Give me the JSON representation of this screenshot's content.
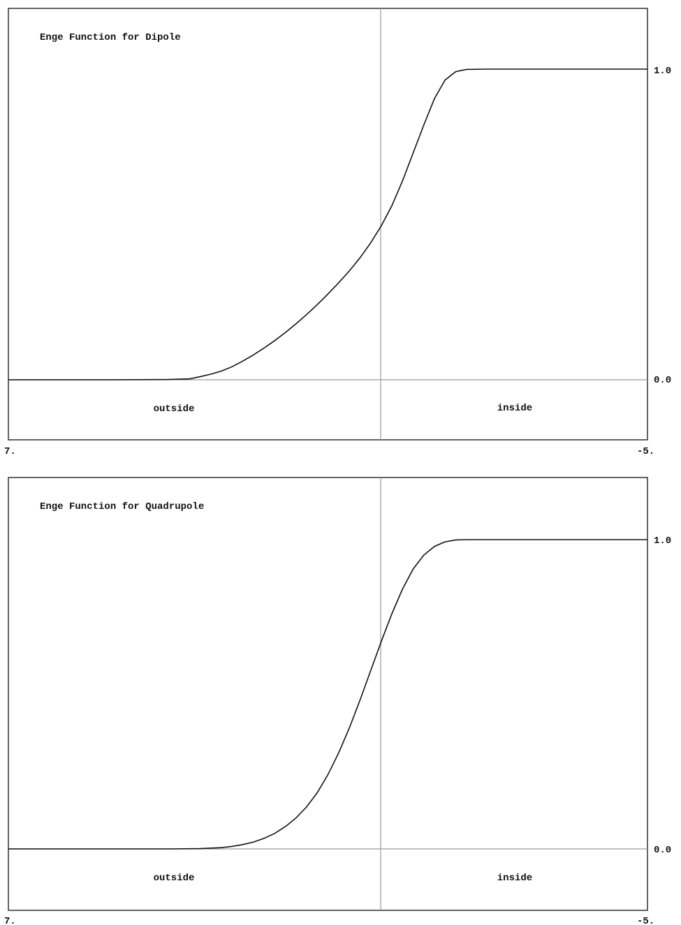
{
  "chart_data": [
    {
      "type": "line",
      "title": "Enge Function for Dipole",
      "xlim": [
        7,
        -5
      ],
      "ylim_labels": [
        "0.0",
        "1.0"
      ],
      "x_tick_labels": [
        "7.",
        "-5."
      ],
      "y_tick_labels": [
        "1.0",
        "0.0"
      ],
      "region_labels": [
        "outside",
        "inside"
      ],
      "grid": false,
      "series": [
        {
          "x": [
            7.0,
            5.0,
            4.0,
            3.6,
            3.4,
            3.2,
            3.0,
            2.8,
            2.6,
            2.4,
            2.2,
            2.0,
            1.8,
            1.6,
            1.4,
            1.2,
            1.0,
            0.8,
            0.6,
            0.4,
            0.2,
            0.0,
            -0.2,
            -0.4,
            -0.6,
            -0.8,
            -1.0,
            -1.2,
            -1.4,
            -1.6,
            -2.0,
            -3.0,
            -4.0,
            -5.0
          ],
          "y": [
            0.0,
            0.0,
            0.001,
            0.003,
            0.01,
            0.018,
            0.028,
            0.042,
            0.06,
            0.08,
            0.102,
            0.126,
            0.152,
            0.18,
            0.21,
            0.242,
            0.276,
            0.312,
            0.35,
            0.392,
            0.44,
            0.495,
            0.56,
            0.64,
            0.73,
            0.82,
            0.905,
            0.965,
            0.992,
            0.999,
            1.0,
            1.0,
            1.0,
            1.0
          ]
        }
      ]
    },
    {
      "type": "line",
      "title": "Enge Function for Quadrupole",
      "xlim": [
        7,
        -5
      ],
      "ylim_labels": [
        "0.0",
        "1.0"
      ],
      "x_tick_labels": [
        "7.",
        "-5."
      ],
      "y_tick_labels": [
        "1.0",
        "0.0"
      ],
      "region_labels": [
        "outside",
        "inside"
      ],
      "grid": false,
      "series": [
        {
          "x": [
            7.0,
            5.0,
            4.0,
            3.4,
            3.0,
            2.8,
            2.6,
            2.4,
            2.2,
            2.0,
            1.8,
            1.6,
            1.4,
            1.2,
            1.0,
            0.8,
            0.6,
            0.4,
            0.2,
            0.0,
            -0.2,
            -0.4,
            -0.6,
            -0.8,
            -1.0,
            -1.2,
            -1.4,
            -1.6,
            -2.0,
            -3.0,
            -4.0,
            -5.0
          ],
          "y": [
            0.0,
            0.0,
            0.0,
            0.001,
            0.004,
            0.008,
            0.014,
            0.022,
            0.034,
            0.05,
            0.072,
            0.1,
            0.136,
            0.182,
            0.24,
            0.31,
            0.39,
            0.48,
            0.575,
            0.67,
            0.76,
            0.84,
            0.905,
            0.95,
            0.978,
            0.993,
            0.999,
            1.0,
            1.0,
            1.0,
            1.0,
            1.0
          ]
        }
      ]
    }
  ]
}
